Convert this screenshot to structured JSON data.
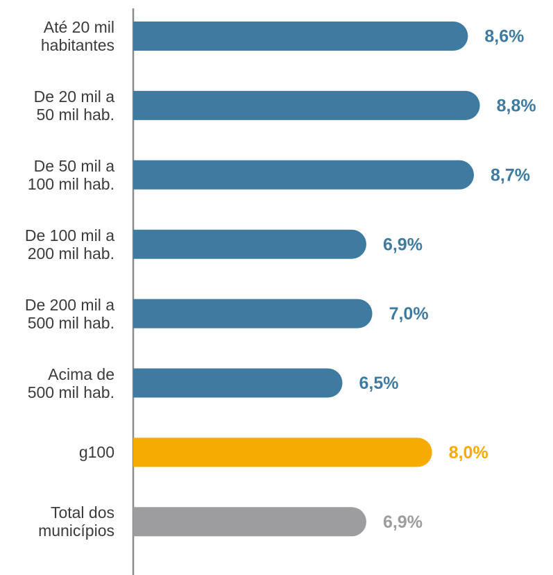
{
  "chart_data": {
    "type": "barh",
    "categories": [
      "Até 20 mil\nhabitantes",
      "De 20 mil a\n50 mil hab.",
      "De 50 mil a\n100 mil hab.",
      "De 100 mil a\n200 mil hab.",
      "De 200 mil a\n500 mil hab.",
      "Acima de\n500 mil hab.",
      "g100",
      "Total dos\nmunicípios"
    ],
    "values": [
      8.6,
      8.8,
      8.7,
      6.9,
      7.0,
      6.5,
      8.0,
      6.9
    ],
    "value_labels": [
      "8,6%",
      "8,8%",
      "8,7%",
      "6,9%",
      "7,0%",
      "6,5%",
      "8,0%",
      "6,9%"
    ],
    "colors": [
      "#3f7ba0",
      "#3f7ba0",
      "#3f7ba0",
      "#3f7ba0",
      "#3f7ba0",
      "#3f7ba0",
      "#f6ab00",
      "#9d9d9f"
    ],
    "xlim": [
      3,
      10
    ]
  }
}
